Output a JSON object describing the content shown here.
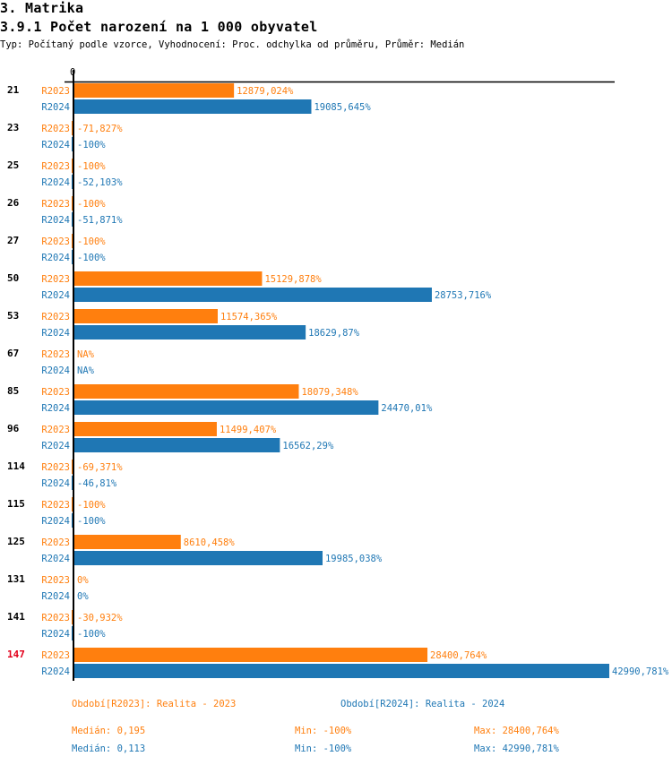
{
  "header": {
    "section": "3. Matrika",
    "title": "3.9.1 Počet narození na 1 000 obyvatel",
    "subtitle": "Typ: Počítaný podle vzorce, Vyhodnocení: Proc. odchylka od průměru, Průměr: Medián"
  },
  "chart_data": {
    "type": "bar",
    "orientation": "horizontal",
    "axis_zero_label": "0",
    "xlim": [
      -100,
      42990.781
    ],
    "series": [
      {
        "key": "R2023",
        "name": "Realita - 2023",
        "color": "#ff7f0e"
      },
      {
        "key": "R2024",
        "name": "Realita - 2024",
        "color": "#1f77b4"
      }
    ],
    "categories": [
      {
        "label": "21",
        "highlight": false,
        "values": [
          12879.024,
          19085.645
        ],
        "labels": [
          "12879,024%",
          "19085,645%"
        ]
      },
      {
        "label": "23",
        "highlight": false,
        "values": [
          -71.827,
          -100
        ],
        "labels": [
          "-71,827%",
          "-100%"
        ]
      },
      {
        "label": "25",
        "highlight": false,
        "values": [
          -100,
          -52.103
        ],
        "labels": [
          "-100%",
          "-52,103%"
        ]
      },
      {
        "label": "26",
        "highlight": false,
        "values": [
          -100,
          -51.871
        ],
        "labels": [
          "-100%",
          "-51,871%"
        ]
      },
      {
        "label": "27",
        "highlight": false,
        "values": [
          -100,
          -100
        ],
        "labels": [
          "-100%",
          "-100%"
        ]
      },
      {
        "label": "50",
        "highlight": false,
        "values": [
          15129.878,
          28753.716
        ],
        "labels": [
          "15129,878%",
          "28753,716%"
        ]
      },
      {
        "label": "53",
        "highlight": false,
        "values": [
          11574.365,
          18629.87
        ],
        "labels": [
          "11574,365%",
          "18629,87%"
        ]
      },
      {
        "label": "67",
        "highlight": false,
        "values": [
          null,
          null
        ],
        "labels": [
          "NA%",
          "NA%"
        ]
      },
      {
        "label": "85",
        "highlight": false,
        "values": [
          18079.348,
          24470.01
        ],
        "labels": [
          "18079,348%",
          "24470,01%"
        ]
      },
      {
        "label": "96",
        "highlight": false,
        "values": [
          11499.407,
          16562.29
        ],
        "labels": [
          "11499,407%",
          "16562,29%"
        ]
      },
      {
        "label": "114",
        "highlight": false,
        "values": [
          -69.371,
          -46.81
        ],
        "labels": [
          "-69,371%",
          "-46,81%"
        ]
      },
      {
        "label": "115",
        "highlight": false,
        "values": [
          -100,
          -100
        ],
        "labels": [
          "-100%",
          "-100%"
        ]
      },
      {
        "label": "125",
        "highlight": false,
        "values": [
          8610.458,
          19985.038
        ],
        "labels": [
          "8610,458%",
          "19985,038%"
        ]
      },
      {
        "label": "131",
        "highlight": false,
        "values": [
          0,
          0
        ],
        "labels": [
          "0%",
          "0%"
        ]
      },
      {
        "label": "141",
        "highlight": false,
        "values": [
          -30.932,
          -100
        ],
        "labels": [
          "-30,932%",
          "-100%"
        ]
      },
      {
        "label": "147",
        "highlight": true,
        "values": [
          28400.764,
          42990.781
        ],
        "labels": [
          "28400,764%",
          "42990,781%"
        ]
      }
    ]
  },
  "legend": {
    "r2023": {
      "period": "Období[R2023]: Realita - 2023",
      "median": "Medián: 0,195",
      "min": "Min: -100%",
      "max": "Max: 28400,764%"
    },
    "r2024": {
      "period": "Období[R2024]: Realita - 2024",
      "median": "Medián: 0,113",
      "min": "Min: -100%",
      "max": "Max: 42990,781%"
    }
  }
}
